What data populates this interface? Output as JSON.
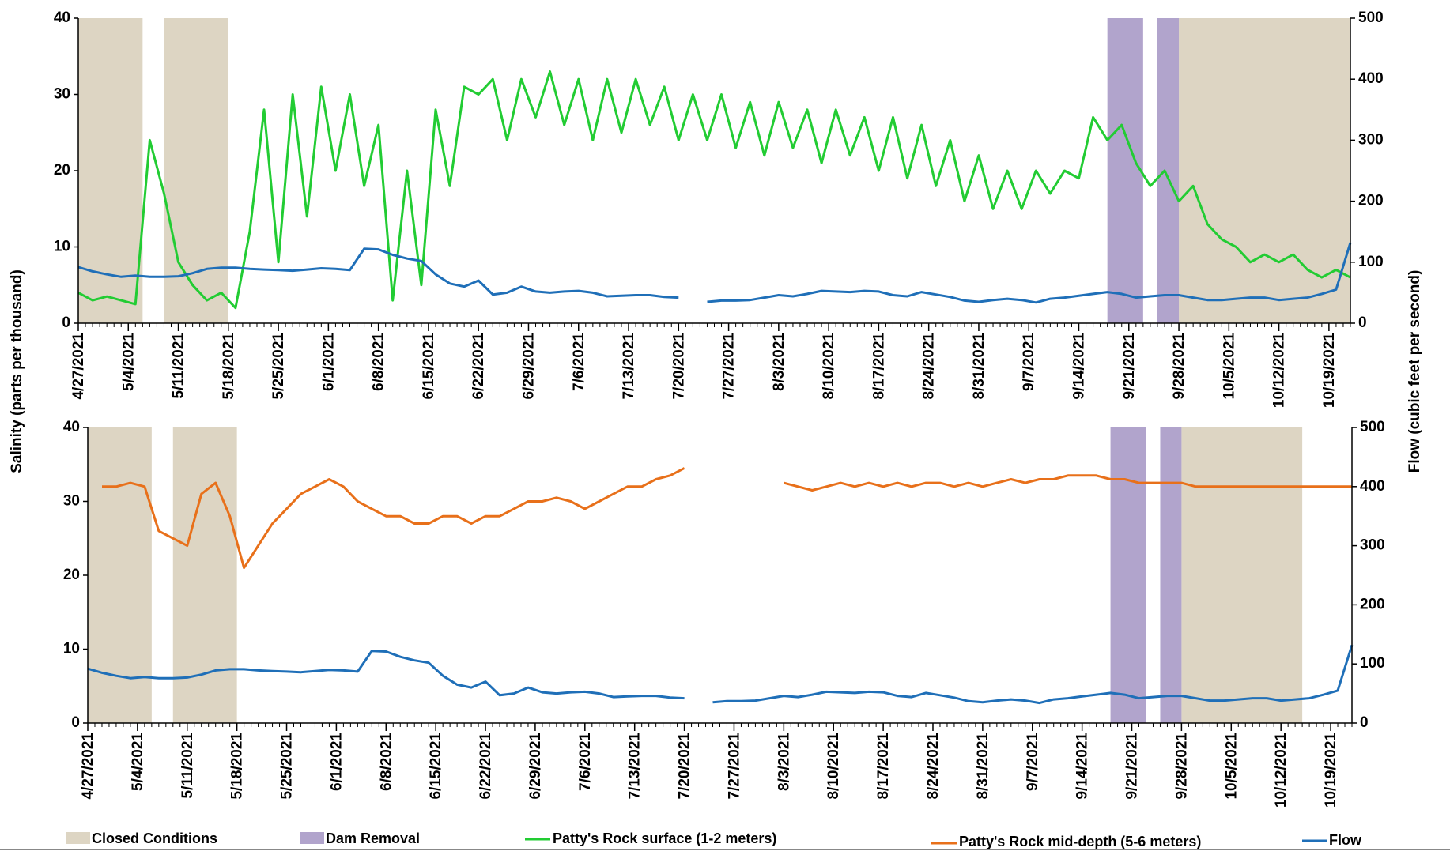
{
  "chart_data": [
    {
      "type": "line",
      "y_label": "Salinity (parts per thousand)",
      "y2_label": "Flow (cubic feet per second)",
      "x": [
        "4/27/2021",
        "4/29/2021",
        "5/1/2021",
        "5/3/2021",
        "5/5/2021",
        "5/7/2021",
        "5/9/2021",
        "5/11/2021",
        "5/13/2021",
        "5/15/2021",
        "5/17/2021",
        "5/19/2021",
        "5/21/2021",
        "5/23/2021",
        "5/25/2021",
        "5/27/2021",
        "5/29/2021",
        "5/31/2021",
        "6/2/2021",
        "6/4/2021",
        "6/6/2021",
        "6/8/2021",
        "6/10/2021",
        "6/12/2021",
        "6/14/2021",
        "6/16/2021",
        "6/18/2021",
        "6/20/2021",
        "6/22/2021",
        "6/24/2021",
        "6/26/2021",
        "6/28/2021",
        "6/30/2021",
        "7/2/2021",
        "7/4/2021",
        "7/6/2021",
        "7/8/2021",
        "7/10/2021",
        "7/12/2021",
        "7/14/2021",
        "7/16/2021",
        "7/18/2021",
        "7/20/2021",
        "7/22/2021",
        "7/24/2021",
        "7/26/2021",
        "7/28/2021",
        "7/30/2021",
        "8/1/2021",
        "8/3/2021",
        "8/5/2021",
        "8/7/2021",
        "8/9/2021",
        "8/11/2021",
        "8/13/2021",
        "8/15/2021",
        "8/17/2021",
        "8/19/2021",
        "8/21/2021",
        "8/23/2021",
        "8/25/2021",
        "8/27/2021",
        "8/29/2021",
        "8/31/2021",
        "9/2/2021",
        "9/4/2021",
        "9/6/2021",
        "9/8/2021",
        "9/10/2021",
        "9/12/2021",
        "9/14/2021",
        "9/16/2021",
        "9/18/2021",
        "9/20/2021",
        "9/22/2021",
        "9/24/2021",
        "9/26/2021",
        "9/28/2021",
        "9/30/2021",
        "10/2/2021",
        "10/4/2021",
        "10/6/2021",
        "10/8/2021",
        "10/10/2021",
        "10/12/2021",
        "10/14/2021",
        "10/16/2021",
        "10/18/2021",
        "10/20/2021",
        "10/22/2021"
      ],
      "series": [
        {
          "name": "Patty's Rock surface (1-2 meters)",
          "color": "#22cc33",
          "values": [
            4,
            3,
            3.5,
            3,
            2.5,
            24,
            17,
            8,
            5,
            3,
            4,
            2,
            12,
            28,
            8,
            30,
            14,
            31,
            20,
            30,
            18,
            26,
            3,
            20,
            5,
            28,
            18,
            31,
            30,
            32,
            24,
            32,
            27,
            33,
            26,
            32,
            24,
            32,
            25,
            32,
            26,
            31,
            24,
            30,
            24,
            30,
            23,
            29,
            22,
            29,
            23,
            28,
            21,
            28,
            22,
            27,
            20,
            27,
            19,
            26,
            18,
            24,
            16,
            22,
            15,
            20,
            15,
            20,
            17,
            20,
            19,
            27,
            24,
            26,
            21,
            18,
            20,
            16,
            18,
            13,
            11,
            10,
            8,
            9,
            8,
            9,
            7,
            6,
            7,
            6
          ]
        },
        {
          "name": "Flow",
          "color": "#1f6fb8",
          "axis": "y2",
          "values": [
            92,
            85,
            80,
            76,
            78,
            76,
            76,
            77,
            82,
            89,
            91,
            91,
            89,
            88,
            87,
            86,
            88,
            90,
            89,
            87,
            122,
            121,
            112,
            106,
            102,
            80,
            65,
            60,
            70,
            47,
            50,
            60,
            52,
            50,
            52,
            53,
            50,
            44,
            45,
            46,
            46,
            43,
            42,
            null,
            35,
            37,
            37,
            38,
            42,
            46,
            44,
            48,
            53,
            52,
            51,
            53,
            52,
            46,
            44,
            51,
            47,
            43,
            37,
            35,
            38,
            40,
            38,
            34,
            40,
            42,
            45,
            48,
            51,
            48,
            42,
            44,
            46,
            46,
            42,
            38,
            38,
            40,
            42,
            42,
            38,
            40,
            42,
            48,
            55,
            132
          ]
        }
      ],
      "spans": [
        {
          "name": "Closed Conditions",
          "color": "#ddd5c3",
          "ranges": [
            [
              "4/27/2021",
              "5/6/2021"
            ],
            [
              "5/9/2021",
              "5/18/2021"
            ],
            [
              "9/28/2021",
              "10/22/2021"
            ]
          ]
        },
        {
          "name": "Dam Removal",
          "color": "#b1a4cc",
          "ranges": [
            [
              "9/18/2021",
              "9/23/2021"
            ],
            [
              "9/25/2021",
              "9/28/2021"
            ]
          ]
        }
      ],
      "xlim": [
        "4/27/2021",
        "10/22/2021"
      ],
      "xticks": [
        "4/27/2021",
        "5/4/2021",
        "5/11/2021",
        "5/18/2021",
        "5/25/2021",
        "6/1/2021",
        "6/8/2021",
        "6/15/2021",
        "6/22/2021",
        "6/29/2021",
        "7/6/2021",
        "7/13/2021",
        "7/20/2021",
        "7/27/2021",
        "8/3/2021",
        "8/10/2021",
        "8/17/2021",
        "8/24/2021",
        "8/31/2021",
        "9/7/2021",
        "9/14/2021",
        "9/21/2021",
        "9/28/2021",
        "10/5/2021",
        "10/12/2021",
        "10/19/2021"
      ],
      "ylim": [
        0,
        40
      ],
      "yticks": [
        0,
        10,
        20,
        30,
        40
      ],
      "y2lim": [
        0,
        500
      ],
      "y2ticks": [
        0,
        100,
        200,
        300,
        400,
        500
      ]
    },
    {
      "type": "line",
      "x": [
        "4/27/2021",
        "4/29/2021",
        "5/1/2021",
        "5/3/2021",
        "5/5/2021",
        "5/7/2021",
        "5/9/2021",
        "5/11/2021",
        "5/13/2021",
        "5/15/2021",
        "5/17/2021",
        "5/19/2021",
        "5/21/2021",
        "5/23/2021",
        "5/25/2021",
        "5/27/2021",
        "5/29/2021",
        "5/31/2021",
        "6/2/2021",
        "6/4/2021",
        "6/6/2021",
        "6/8/2021",
        "6/10/2021",
        "6/12/2021",
        "6/14/2021",
        "6/16/2021",
        "6/18/2021",
        "6/20/2021",
        "6/22/2021",
        "6/24/2021",
        "6/26/2021",
        "6/28/2021",
        "6/30/2021",
        "7/2/2021",
        "7/4/2021",
        "7/6/2021",
        "7/8/2021",
        "7/10/2021",
        "7/12/2021",
        "7/14/2021",
        "7/16/2021",
        "7/18/2021",
        "7/20/2021",
        "7/22/2021",
        "7/24/2021",
        "7/26/2021",
        "7/28/2021",
        "7/30/2021",
        "8/1/2021",
        "8/3/2021",
        "8/5/2021",
        "8/7/2021",
        "8/9/2021",
        "8/11/2021",
        "8/13/2021",
        "8/15/2021",
        "8/17/2021",
        "8/19/2021",
        "8/21/2021",
        "8/23/2021",
        "8/25/2021",
        "8/27/2021",
        "8/29/2021",
        "8/31/2021",
        "9/2/2021",
        "9/4/2021",
        "9/6/2021",
        "9/8/2021",
        "9/10/2021",
        "9/12/2021",
        "9/14/2021",
        "9/16/2021",
        "9/18/2021",
        "9/20/2021",
        "9/22/2021",
        "9/24/2021",
        "9/26/2021",
        "9/28/2021",
        "9/30/2021",
        "10/2/2021",
        "10/4/2021",
        "10/6/2021",
        "10/8/2021",
        "10/10/2021",
        "10/12/2021",
        "10/14/2021",
        "10/16/2021",
        "10/18/2021",
        "10/20/2021",
        "10/22/2021"
      ],
      "series": [
        {
          "name": "Patty's Rock mid-depth (5-6 meters)",
          "color": "#e8701a",
          "values": [
            null,
            32,
            32,
            32.5,
            32,
            26,
            25,
            24,
            31,
            32.5,
            28,
            21,
            24,
            27,
            29,
            31,
            32,
            33,
            32,
            30,
            29,
            28,
            28,
            27,
            27,
            28,
            28,
            27,
            28,
            28,
            29,
            30,
            30,
            30.5,
            30,
            29,
            30,
            31,
            32,
            32,
            33,
            33.5,
            34.5,
            null,
            null,
            null,
            null,
            null,
            null,
            32.5,
            32,
            31.5,
            32,
            32.5,
            32,
            32.5,
            32,
            32.5,
            32,
            32.5,
            32.5,
            32,
            32.5,
            32,
            32.5,
            33,
            32.5,
            33,
            33,
            33.5,
            33.5,
            33.5,
            33,
            33,
            32.5,
            32.5,
            32.5,
            32.5,
            32,
            32,
            32,
            32,
            32,
            32,
            32,
            32,
            32,
            32,
            32,
            32
          ]
        },
        {
          "color": "#1f6fb8",
          "axis": "y2",
          "values": [
            92,
            85,
            80,
            76,
            78,
            76,
            76,
            77,
            82,
            89,
            91,
            91,
            89,
            88,
            87,
            86,
            88,
            90,
            89,
            87,
            122,
            121,
            112,
            106,
            102,
            80,
            65,
            60,
            70,
            47,
            50,
            60,
            52,
            50,
            52,
            53,
            50,
            44,
            45,
            46,
            46,
            43,
            42,
            null,
            35,
            37,
            37,
            38,
            42,
            46,
            44,
            48,
            53,
            52,
            51,
            53,
            52,
            46,
            44,
            51,
            47,
            43,
            37,
            35,
            38,
            40,
            38,
            34,
            40,
            42,
            45,
            48,
            51,
            48,
            42,
            44,
            46,
            46,
            42,
            38,
            38,
            40,
            42,
            42,
            38,
            40,
            42,
            48,
            55,
            132
          ]
        }
      ],
      "spans": [
        {
          "ranges": [
            [
              "4/27/2021",
              "5/6/2021"
            ],
            [
              "5/9/2021",
              "5/18/2021"
            ],
            [
              "9/28/2021",
              "10/15/2021"
            ]
          ]
        },
        {
          "ranges": [
            [
              "9/18/2021",
              "9/23/2021"
            ],
            [
              "9/25/2021",
              "9/28/2021"
            ]
          ]
        }
      ],
      "xlim": [
        "4/27/2021",
        "10/22/2021"
      ],
      "xticks": [
        "4/27/2021",
        "5/4/2021",
        "5/11/2021",
        "5/18/2021",
        "5/25/2021",
        "6/1/2021",
        "6/8/2021",
        "6/15/2021",
        "6/22/2021",
        "6/29/2021",
        "7/6/2021",
        "7/13/2021",
        "7/20/2021",
        "7/27/2021",
        "8/3/2021",
        "8/10/2021",
        "8/17/2021",
        "8/24/2021",
        "8/31/2021",
        "9/7/2021",
        "9/14/2021",
        "9/21/2021",
        "9/28/2021",
        "10/5/2021",
        "10/12/2021",
        "10/19/2021"
      ],
      "ylim": [
        0,
        40
      ],
      "yticks": [
        0,
        10,
        20,
        30,
        40
      ],
      "y2lim": [
        0,
        500
      ],
      "y2ticks": [
        0,
        100,
        200,
        300,
        400,
        500
      ]
    }
  ]
}
